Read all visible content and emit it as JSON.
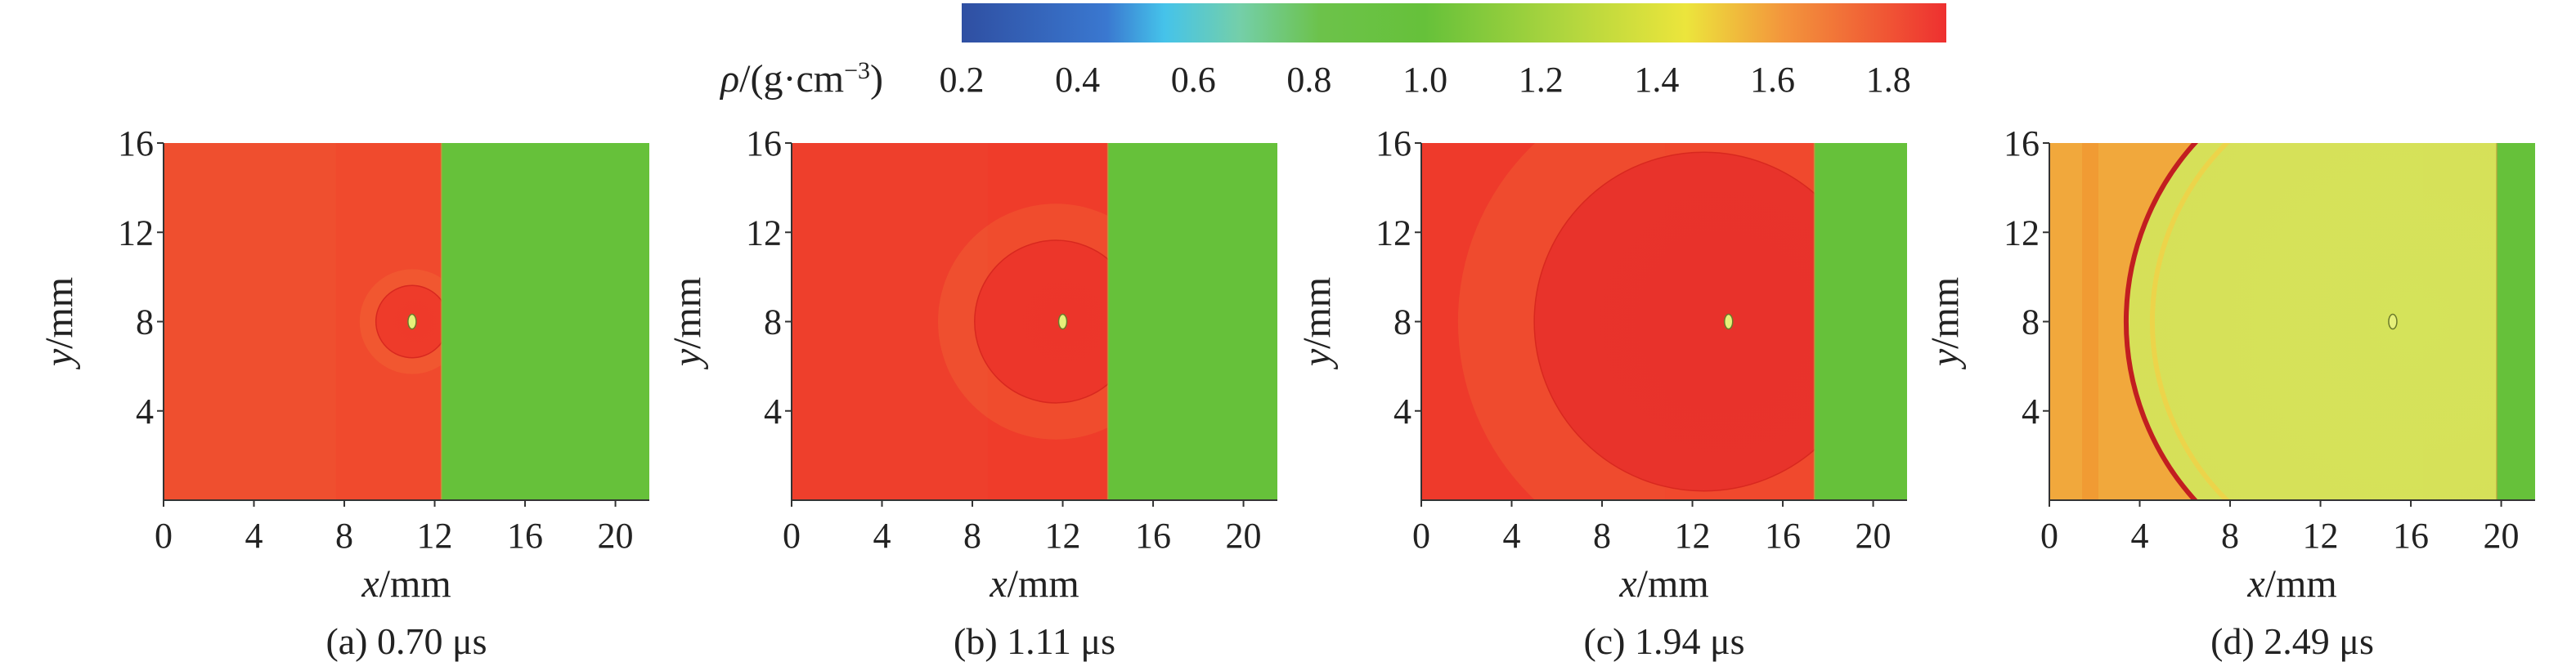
{
  "colorbar": {
    "label_symbol": "ρ",
    "label_rest": "/(g·cm",
    "label_exp": "−3",
    "label_close": ")",
    "ticks": [
      "0.2",
      "0.4",
      "0.6",
      "0.8",
      "1.0",
      "1.2",
      "1.4",
      "1.6",
      "1.8"
    ],
    "range": [
      0.2,
      1.9
    ],
    "stops": [
      {
        "v": 0.2,
        "color": "#2f4fa2"
      },
      {
        "v": 0.45,
        "color": "#3a78d0"
      },
      {
        "v": 0.55,
        "color": "#45c3ea"
      },
      {
        "v": 0.68,
        "color": "#74cfa9"
      },
      {
        "v": 0.82,
        "color": "#6cc24a"
      },
      {
        "v": 1.0,
        "color": "#66c13a"
      },
      {
        "v": 1.22,
        "color": "#a9d43e"
      },
      {
        "v": 1.45,
        "color": "#ece53c"
      },
      {
        "v": 1.62,
        "color": "#f3953c"
      },
      {
        "v": 1.9,
        "color": "#ee3030"
      }
    ]
  },
  "chart_data": [
    {
      "type": "heatmap",
      "caption": "(a) 0.70 μs",
      "xlabel_var": "x",
      "xlabel_unit": "/mm",
      "ylabel_var": "y",
      "ylabel_unit": "/mm",
      "xticks": [
        "0",
        "4",
        "8",
        "12",
        "16",
        "20"
      ],
      "yticks": [
        "4",
        "8",
        "12",
        "16"
      ],
      "xlim": [
        0,
        21.5
      ],
      "ylim": [
        0,
        16
      ],
      "shock_front_x": 12.3,
      "sphere_center": [
        11.0,
        8.0
      ],
      "sphere_radius": 1.6,
      "density_left": 1.78,
      "density_right": 1.0,
      "colors": {
        "left": "#ef4f2f",
        "right": "#66c13a",
        "sphere": "#ee3a2a"
      }
    },
    {
      "type": "heatmap",
      "caption": "(b) 1.11 μs",
      "xlabel_var": "x",
      "xlabel_unit": "/mm",
      "ylabel_var": "y",
      "ylabel_unit": "/mm",
      "xticks": [
        "0",
        "4",
        "8",
        "12",
        "16",
        "20"
      ],
      "yticks": [
        "4",
        "8",
        "12",
        "16"
      ],
      "xlim": [
        0,
        21.5
      ],
      "ylim": [
        0,
        16
      ],
      "shock_front_x": 14.0,
      "sphere_center": [
        11.7,
        8.0
      ],
      "sphere_radius": 3.6,
      "density_left": 1.82,
      "density_right": 1.0,
      "colors": {
        "left": "#ee3f2c",
        "right": "#66c13a",
        "sphere": "#ec352a"
      }
    },
    {
      "type": "heatmap",
      "caption": "(c) 1.94 μs",
      "xlabel_var": "x",
      "xlabel_unit": "/mm",
      "ylabel_var": "y",
      "ylabel_unit": "/mm",
      "xticks": [
        "0",
        "4",
        "8",
        "12",
        "16",
        "20"
      ],
      "yticks": [
        "4",
        "8",
        "12",
        "16"
      ],
      "xlim": [
        0,
        21.5
      ],
      "ylim": [
        0,
        16
      ],
      "shock_front_x": 17.4,
      "sphere_center": [
        12.5,
        8.0
      ],
      "sphere_radius": 7.5,
      "density_left": 1.85,
      "density_right": 1.0,
      "colors": {
        "left": "#ee3a2b",
        "right": "#66c13a",
        "sphere": "#e8322b"
      }
    },
    {
      "type": "heatmap",
      "caption": "(d) 2.49 μs",
      "xlabel_var": "x",
      "xlabel_unit": "/mm",
      "ylabel_var": "y",
      "ylabel_unit": "/mm",
      "xticks": [
        "0",
        "4",
        "8",
        "12",
        "16",
        "20"
      ],
      "yticks": [
        "4",
        "8",
        "12",
        "16"
      ],
      "xlim": [
        0,
        21.5
      ],
      "ylim": [
        0,
        16
      ],
      "shock_front_x": 19.8,
      "sphere_center": [
        15.2,
        8.0
      ],
      "sphere_radius": 11.8,
      "density_left": 1.6,
      "density_right": 1.0,
      "colors": {
        "left": "#f1a83c",
        "right": "#66c13a",
        "sphere": "#d5e35a"
      }
    }
  ]
}
